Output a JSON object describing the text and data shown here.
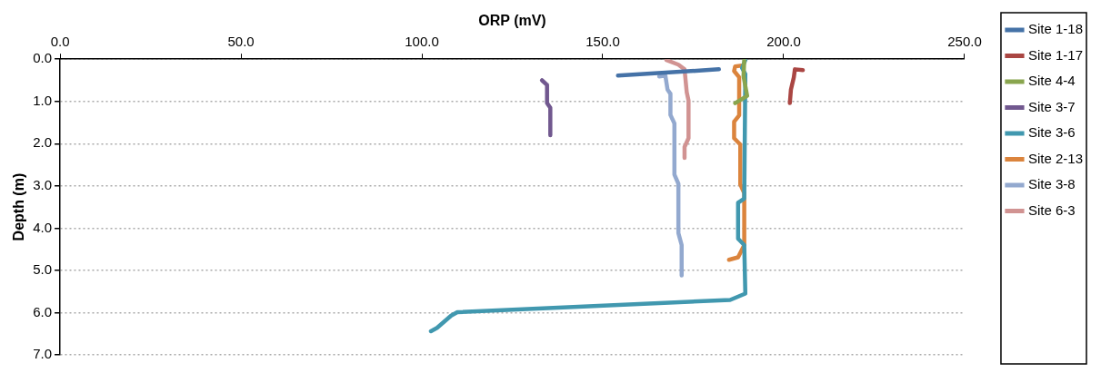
{
  "chart_data": {
    "type": "line",
    "xlabel": "ORP (mV)",
    "ylabel": "Depth (m)",
    "xlim": [
      0,
      250
    ],
    "xticks": [
      {
        "value": 0,
        "label": "0.0"
      },
      {
        "value": 50,
        "label": "50.0"
      },
      {
        "value": 100,
        "label": "100.0"
      },
      {
        "value": 150,
        "label": "150.0"
      },
      {
        "value": 200,
        "label": "200.0"
      },
      {
        "value": 250,
        "label": "250.0"
      }
    ],
    "ylim": [
      7,
      0
    ],
    "yticks": [
      {
        "value": 0,
        "label": "0.0"
      },
      {
        "value": 1,
        "label": "1.0"
      },
      {
        "value": 2,
        "label": "2.0"
      },
      {
        "value": 3,
        "label": "3.0"
      },
      {
        "value": 4,
        "label": "4.0"
      },
      {
        "value": 5,
        "label": "5.0"
      },
      {
        "value": 6,
        "label": "6.0"
      },
      {
        "value": 7,
        "label": "7.0"
      }
    ],
    "grid": "y",
    "legend": "right",
    "marker": "none",
    "line_style": "solid",
    "series": [
      {
        "name": "Site 1-18",
        "color": "#4572a7",
        "x": [
          154.2,
          182.1
        ],
        "values": [
          0.39,
          0.24
        ]
      },
      {
        "name": "Site 1-17",
        "color": "#aa4643",
        "x": [
          205.3,
          203.1,
          202.8,
          202.0,
          201.7
        ],
        "values": [
          0.26,
          0.24,
          0.43,
          0.72,
          1.04
        ]
      },
      {
        "name": "Site 4-4",
        "color": "#89a54e",
        "x": [
          189.1,
          188.9,
          189.9,
          186.6
        ],
        "values": [
          0.02,
          0.4,
          0.87,
          1.04
        ]
      },
      {
        "name": "Site 3-7",
        "color": "#71588f",
        "x": [
          133.2,
          134.6,
          134.6,
          135.5,
          135.5
        ],
        "values": [
          0.5,
          0.61,
          1.04,
          1.15,
          1.8
        ]
      },
      {
        "name": "Site 3-6",
        "color": "#4198af",
        "x": [
          189.4,
          188.5,
          189.4,
          189.1,
          187.4,
          187.4,
          189.1,
          189.4,
          185.2,
          109.8,
          108.1,
          104.2,
          102.5
        ],
        "values": [
          0.02,
          0.21,
          0.35,
          3.3,
          3.4,
          4.25,
          4.4,
          5.55,
          5.7,
          5.99,
          6.07,
          6.36,
          6.44
        ]
      },
      {
        "name": "Site 2-13",
        "color": "#db843d",
        "x": [
          188.5,
          186.6,
          186.3,
          187.7,
          187.7,
          186.3,
          186.3,
          188.0,
          188.0,
          189.1,
          189.1,
          187.4,
          184.9
        ],
        "values": [
          0.15,
          0.17,
          0.28,
          0.43,
          1.33,
          1.48,
          1.87,
          2.02,
          2.96,
          3.17,
          4.4,
          4.69,
          4.75
        ]
      },
      {
        "name": "Site 3-8",
        "color": "#93a9cf",
        "x": [
          165.6,
          167.3,
          167.9,
          168.7,
          168.7,
          169.8,
          169.8,
          170.9,
          170.9,
          171.8,
          171.8
        ],
        "values": [
          0.41,
          0.39,
          0.72,
          0.82,
          1.32,
          1.52,
          2.73,
          2.95,
          4.12,
          4.4,
          5.12
        ]
      },
      {
        "name": "Site 6-3",
        "color": "#d19392",
        "x": [
          167.6,
          170.9,
          172.6,
          173.2,
          173.7,
          173.7,
          172.6,
          172.6
        ],
        "values": [
          0.02,
          0.13,
          0.24,
          0.78,
          0.98,
          1.87,
          2.08,
          2.34
        ]
      }
    ]
  }
}
